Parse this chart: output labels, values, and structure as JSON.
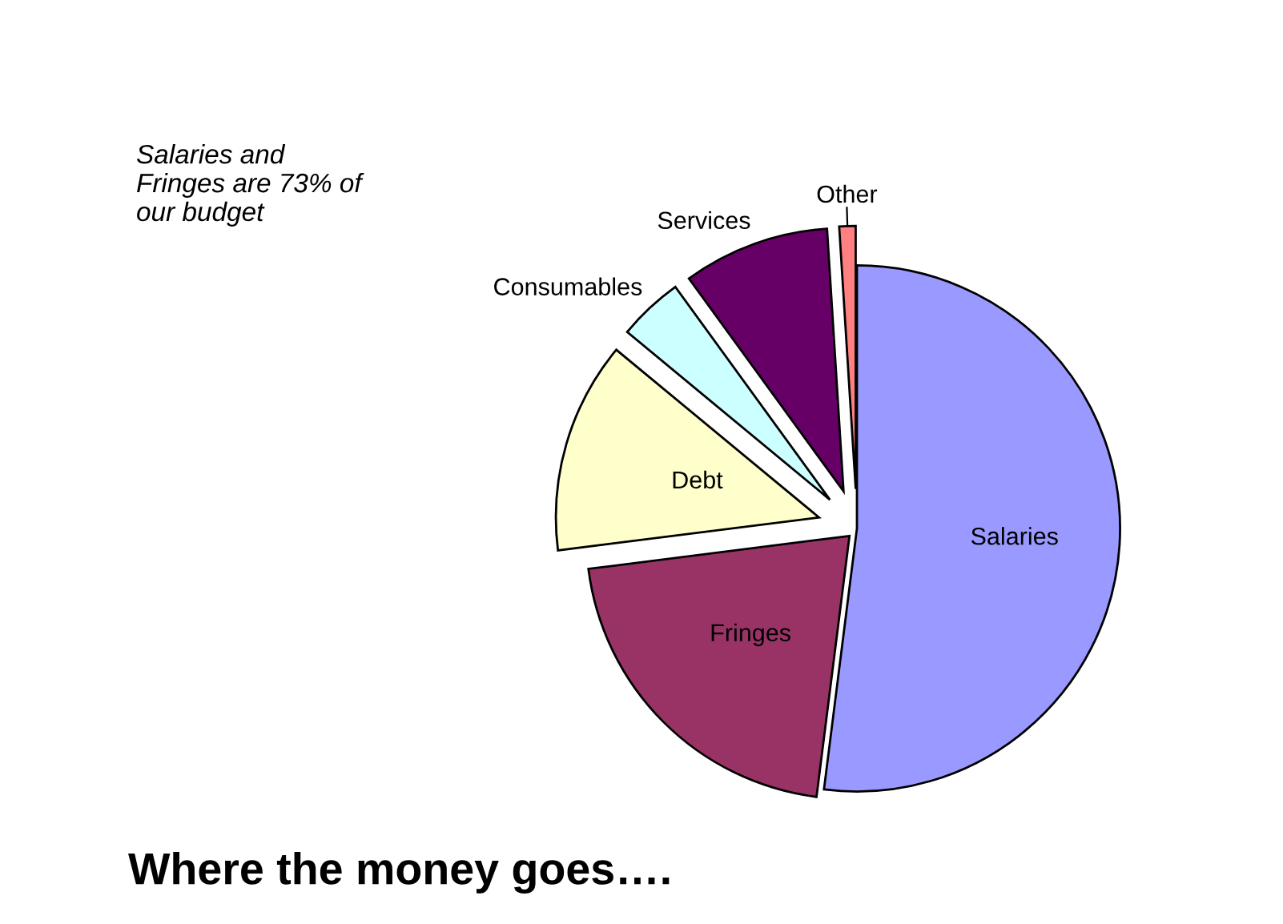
{
  "chart_data": {
    "type": "pie",
    "title": "Where the money goes….",
    "categories": [
      "Salaries",
      "Fringes",
      "Debt",
      "Consumables",
      "Services",
      "Other"
    ],
    "values": [
      52,
      21,
      13,
      4,
      9,
      1
    ],
    "colors": [
      "#9999ff",
      "#993366",
      "#ffffcc",
      "#ccffff",
      "#660066",
      "#ff8080"
    ],
    "annotations": [
      "Salaries and\nFringes are 73% of\nour budget"
    ],
    "legend": false
  }
}
